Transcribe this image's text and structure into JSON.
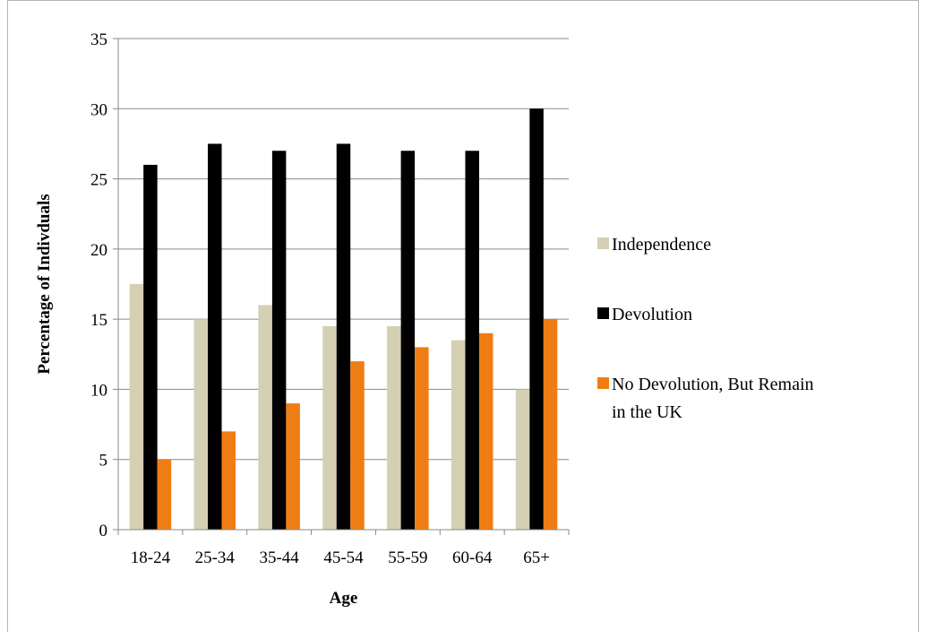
{
  "chart_data": {
    "type": "bar",
    "title": "",
    "xlabel": "Age",
    "ylabel": "Percentage of Indivduals",
    "categories": [
      "18-24",
      "25-34",
      "35-44",
      "45-54",
      "55-59",
      "60-64",
      "65+"
    ],
    "ylim": [
      0,
      35
    ],
    "yticks": [
      0,
      5,
      10,
      15,
      20,
      25,
      30,
      35
    ],
    "grid": true,
    "legend_position": "right",
    "series": [
      {
        "name": "Independence",
        "color": "#d5cfb3",
        "values": [
          17.5,
          15,
          16,
          14.5,
          14.5,
          13.5,
          10
        ]
      },
      {
        "name": "Devolution",
        "color": "#000000",
        "values": [
          26,
          27.5,
          27,
          27.5,
          27,
          27,
          30
        ]
      },
      {
        "name": "No Devolution, But Remain in the UK",
        "legend_lines": [
          "No Devolution, But Remain",
          "in the UK"
        ],
        "color": "#f07d14",
        "values": [
          5,
          7,
          9,
          12,
          13,
          14,
          15
        ]
      }
    ]
  }
}
